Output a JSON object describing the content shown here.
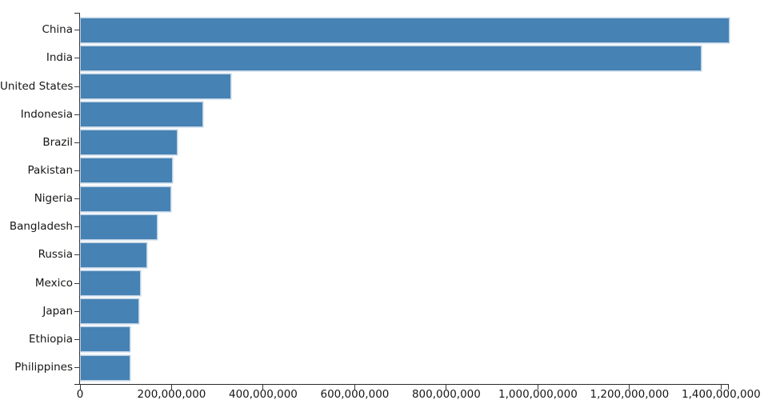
{
  "chart_data": {
    "type": "bar",
    "orientation": "horizontal",
    "title": "",
    "xlabel": "",
    "ylabel": "",
    "grid": false,
    "legend": null,
    "bar_color": "#4682b4",
    "axis_color": "#2b2b2b",
    "text_color": "#161616",
    "background_color": "#ffffff",
    "xlim": [
      0,
      1415045928
    ],
    "categories": [
      "China",
      "India",
      "United States",
      "Indonesia",
      "Brazil",
      "Pakistan",
      "Nigeria",
      "Bangladesh",
      "Russia",
      "Mexico",
      "Japan",
      "Ethiopia",
      "Philippines"
    ],
    "values": [
      1415045928,
      1354051854,
      326766748,
      266794980,
      210867954,
      200813818,
      195875237,
      166368149,
      143964709,
      130759074,
      127185332,
      107534882,
      106512074
    ],
    "x_ticks": [
      {
        "value": 0,
        "label": "0"
      },
      {
        "value": 200000000,
        "label": "200,000,000"
      },
      {
        "value": 400000000,
        "label": "400,000,000"
      },
      {
        "value": 600000000,
        "label": "600,000,000"
      },
      {
        "value": 800000000,
        "label": "800,000,000"
      },
      {
        "value": 1000000000,
        "label": "1,000,000,000"
      },
      {
        "value": 1200000000,
        "label": "1,200,000,000"
      },
      {
        "value": 1400000000,
        "label": "1,400,000,000"
      }
    ]
  }
}
